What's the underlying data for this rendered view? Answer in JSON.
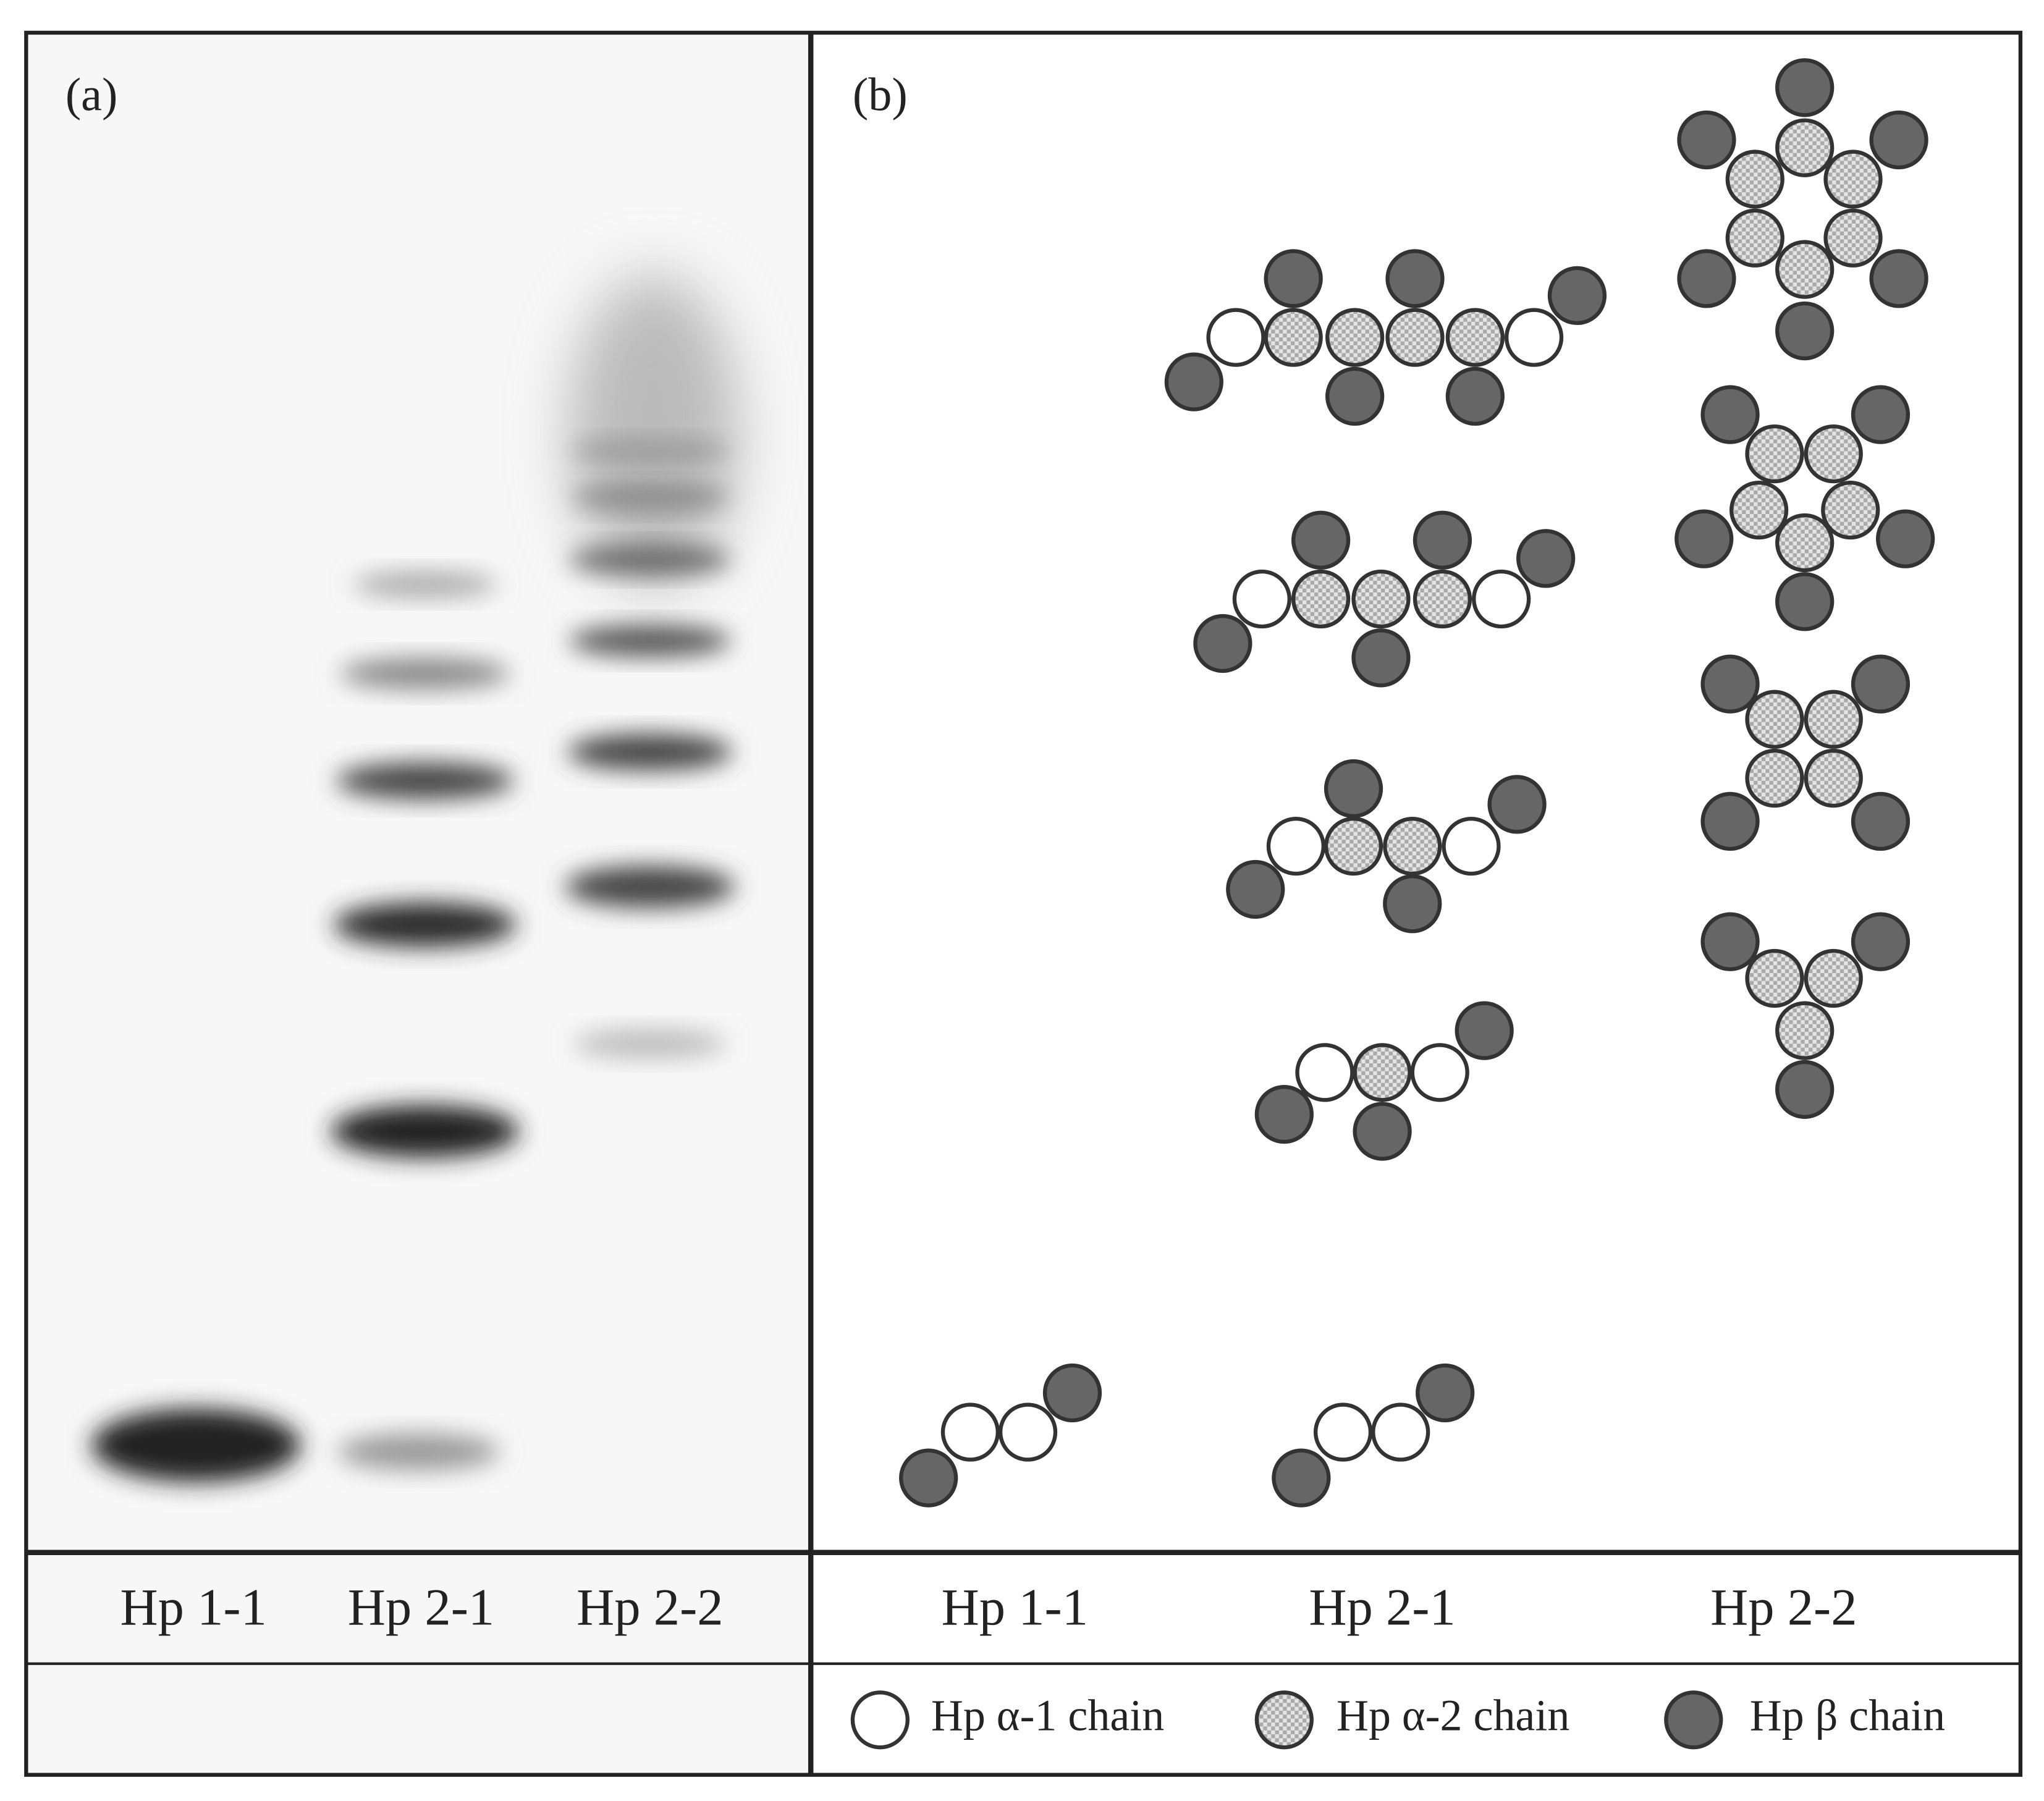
{
  "panel_a": {
    "label": "(a)",
    "lanes": [
      "Hp 1-1",
      "Hp 2-1",
      "Hp 2-2"
    ]
  },
  "panel_b": {
    "label": "(b)",
    "lanes": [
      "Hp 1-1",
      "Hp 2-1",
      "Hp 2-2"
    ],
    "legend": [
      "Hp α-1 chain",
      "Hp α-2 chain",
      "Hp β chain"
    ]
  }
}
